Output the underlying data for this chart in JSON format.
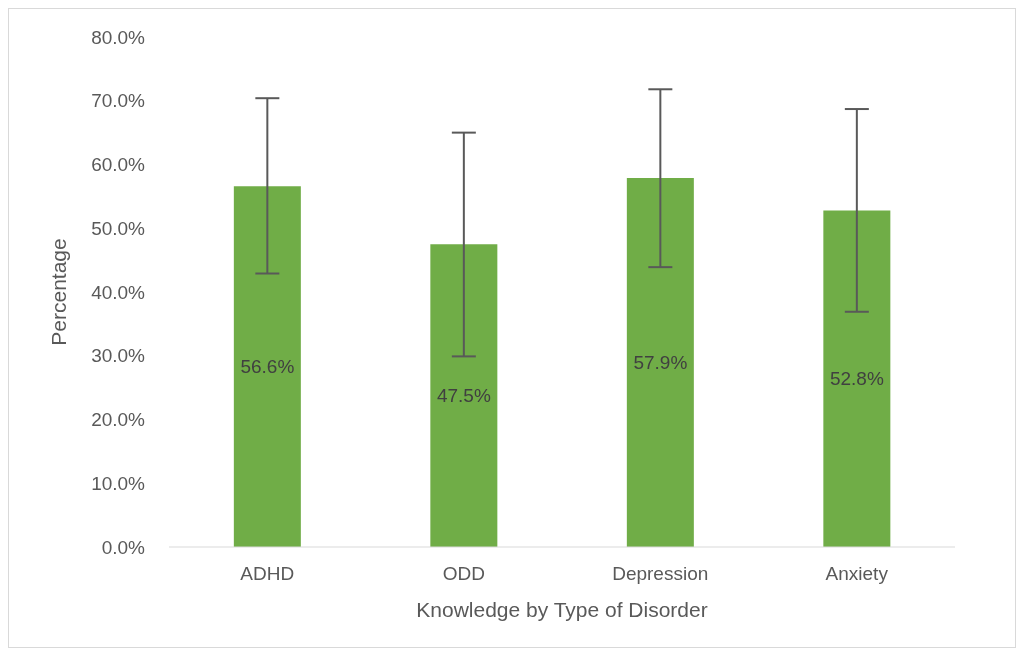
{
  "chart_data": {
    "type": "bar",
    "xlabel": "Knowledge by Type of Disorder",
    "ylabel": "Percentage",
    "categories": [
      "ADHD",
      "ODD",
      "Depression",
      "Anxiety"
    ],
    "values": [
      56.6,
      47.5,
      57.9,
      52.8
    ],
    "color": "#70ad47",
    "value_labels": [
      "56.6%",
      "47.5%",
      "57.9%",
      "52.8%"
    ],
    "errors": [
      [
        42.9,
        70.4
      ],
      [
        29.9,
        65.0
      ],
      [
        43.9,
        71.8
      ],
      [
        36.9,
        68.7
      ]
    ],
    "ylim": [
      0,
      80
    ],
    "yticks": [
      {
        "value": 0,
        "label": "0.0%"
      },
      {
        "value": 10,
        "label": "10.0%"
      },
      {
        "value": 20,
        "label": "20.0%"
      },
      {
        "value": 30,
        "label": "30.0%"
      },
      {
        "value": 40,
        "label": "40.0%"
      },
      {
        "value": 50,
        "label": "50.0%"
      },
      {
        "value": 60,
        "label": "60.0%"
      },
      {
        "value": 70,
        "label": "70.0%"
      },
      {
        "value": 80,
        "label": "80.0%"
      }
    ],
    "grid": false,
    "legend": false
  }
}
